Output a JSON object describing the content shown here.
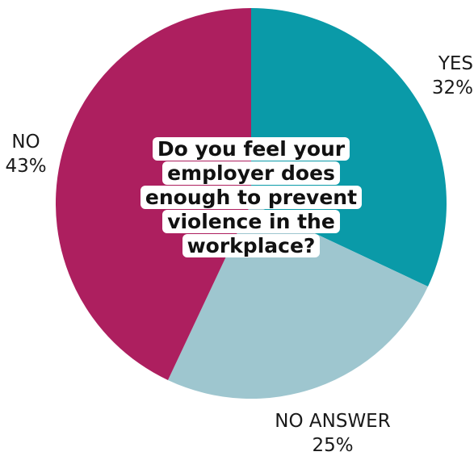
{
  "chart_data": {
    "type": "pie",
    "title": "Do you feel your employer does enough to prevent violence in the workplace?",
    "legend": "none",
    "slices": [
      {
        "name": "YES",
        "value": 32,
        "label": "32%",
        "color": "#0a9aa8"
      },
      {
        "name": "NO ANSWER",
        "value": 25,
        "label": "25%",
        "color": "#9ec6cf"
      },
      {
        "name": "NO",
        "value": 43,
        "label": "43%",
        "color": "#ad1f5f"
      }
    ]
  }
}
